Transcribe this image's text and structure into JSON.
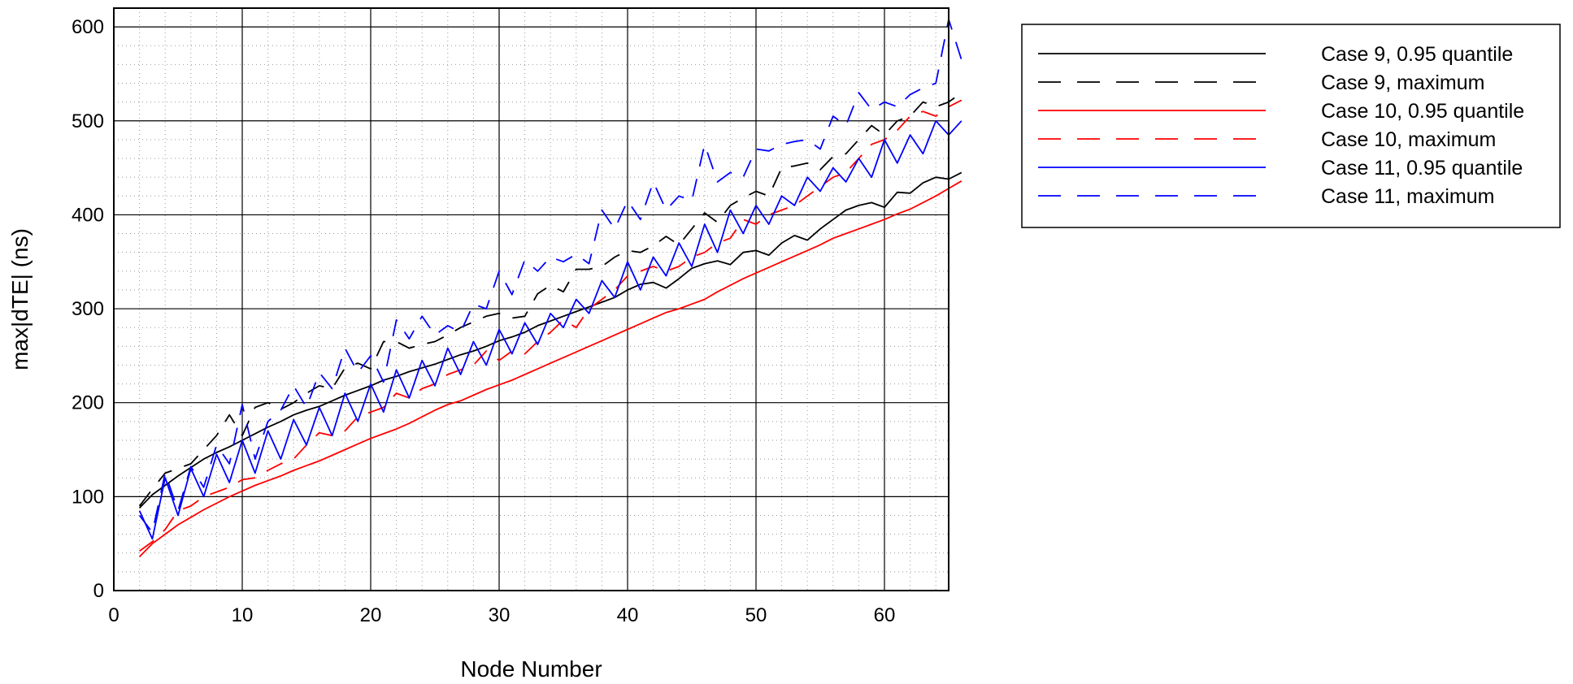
{
  "chart_data": {
    "type": "line",
    "title": "",
    "xlabel": "Node Number",
    "ylabel": "max|dTE| (ns)",
    "xlim": [
      0,
      65
    ],
    "ylim": [
      0,
      620
    ],
    "xticks": [
      0,
      10,
      20,
      30,
      40,
      50,
      60
    ],
    "yticks": [
      0,
      100,
      200,
      300,
      400,
      500,
      600
    ],
    "grid": "major solid, minor dotted",
    "legend_position": "top-right, outside plot",
    "x_step": 1,
    "series": [
      {
        "name": "Case 9, 0.95 quantile",
        "color": "#000000",
        "dash": "solid",
        "x_start": 2,
        "values": [
          88,
          102,
          112,
          122,
          131,
          140,
          147,
          153,
          160,
          167,
          174,
          180,
          187,
          192,
          196,
          202,
          208,
          213,
          218,
          224,
          228,
          233,
          237,
          241,
          246,
          251,
          255,
          260,
          266,
          270,
          275,
          282,
          287,
          292,
          297,
          302,
          307,
          312,
          320,
          326,
          328,
          322,
          332,
          343,
          348,
          351,
          347,
          360,
          362,
          357,
          370,
          378,
          373,
          385,
          395,
          405,
          410,
          413,
          408,
          424,
          423,
          434,
          440,
          438,
          445
        ]
      },
      {
        "name": "Case 9, maximum",
        "color": "#000000",
        "dash": "long",
        "x_start": 2,
        "values": [
          90,
          108,
          125,
          130,
          135,
          150,
          165,
          187,
          165,
          195,
          200,
          193,
          200,
          210,
          218,
          215,
          237,
          242,
          236,
          265,
          265,
          258,
          262,
          265,
          272,
          280,
          286,
          292,
          295,
          290,
          292,
          316,
          325,
          318,
          342,
          342,
          345,
          355,
          362,
          360,
          367,
          377,
          368,
          385,
          402,
          392,
          410,
          418,
          425,
          420,
          450,
          452,
          455,
          448,
          462,
          465,
          480,
          495,
          485,
          500,
          505,
          520,
          515,
          520,
          530
        ]
      },
      {
        "name": "Case 10, 0.95 quantile",
        "color": "#ff0000",
        "dash": "solid",
        "x_start": 2,
        "values": [
          36,
          50,
          60,
          70,
          78,
          86,
          93,
          100,
          106,
          112,
          117,
          122,
          128,
          133,
          138,
          144,
          150,
          156,
          162,
          167,
          172,
          178,
          185,
          192,
          198,
          202,
          208,
          214,
          219,
          224,
          230,
          236,
          242,
          248,
          254,
          260,
          266,
          272,
          278,
          284,
          290,
          296,
          300,
          305,
          310,
          318,
          325,
          332,
          338,
          344,
          350,
          356,
          362,
          368,
          375,
          380,
          385,
          390,
          395,
          401,
          406,
          413,
          420,
          428,
          436
        ]
      },
      {
        "name": "Case 10, maximum",
        "color": "#ff0000",
        "dash": "long",
        "x_start": 2,
        "values": [
          42,
          52,
          65,
          85,
          90,
          100,
          105,
          110,
          118,
          120,
          128,
          135,
          140,
          155,
          168,
          165,
          170,
          185,
          190,
          195,
          210,
          205,
          215,
          220,
          230,
          235,
          240,
          255,
          245,
          255,
          252,
          265,
          275,
          288,
          280,
          300,
          310,
          320,
          335,
          340,
          345,
          340,
          345,
          355,
          360,
          370,
          375,
          395,
          390,
          400,
          405,
          410,
          420,
          430,
          440,
          445,
          460,
          475,
          480,
          490,
          505,
          510,
          505,
          515,
          522
        ]
      },
      {
        "name": "Case 11, 0.95 quantile",
        "color": "#0000ff",
        "dash": "solid",
        "x_start": 2,
        "values": [
          85,
          55,
          120,
          80,
          130,
          100,
          145,
          115,
          160,
          125,
          170,
          140,
          182,
          155,
          195,
          165,
          210,
          180,
          220,
          190,
          235,
          205,
          245,
          218,
          258,
          230,
          265,
          240,
          278,
          252,
          285,
          262,
          295,
          280,
          310,
          295,
          330,
          312,
          350,
          320,
          355,
          335,
          370,
          345,
          390,
          360,
          405,
          380,
          410,
          390,
          420,
          410,
          440,
          425,
          450,
          435,
          460,
          440,
          480,
          455,
          485,
          465,
          500,
          485,
          500
        ]
      },
      {
        "name": "Case 11, maximum",
        "color": "#0000ff",
        "dash": "long",
        "x_start": 2,
        "values": [
          80,
          62,
          125,
          85,
          132,
          110,
          155,
          135,
          198,
          140,
          180,
          192,
          218,
          195,
          232,
          215,
          258,
          232,
          250,
          222,
          288,
          268,
          292,
          272,
          282,
          275,
          305,
          300,
          340,
          315,
          352,
          340,
          355,
          350,
          358,
          348,
          405,
          385,
          415,
          395,
          435,
          405,
          420,
          415,
          475,
          435,
          445,
          440,
          470,
          468,
          475,
          478,
          480,
          470,
          505,
          495,
          530,
          512,
          520,
          515,
          528,
          535,
          540,
          608,
          565
        ]
      }
    ]
  }
}
